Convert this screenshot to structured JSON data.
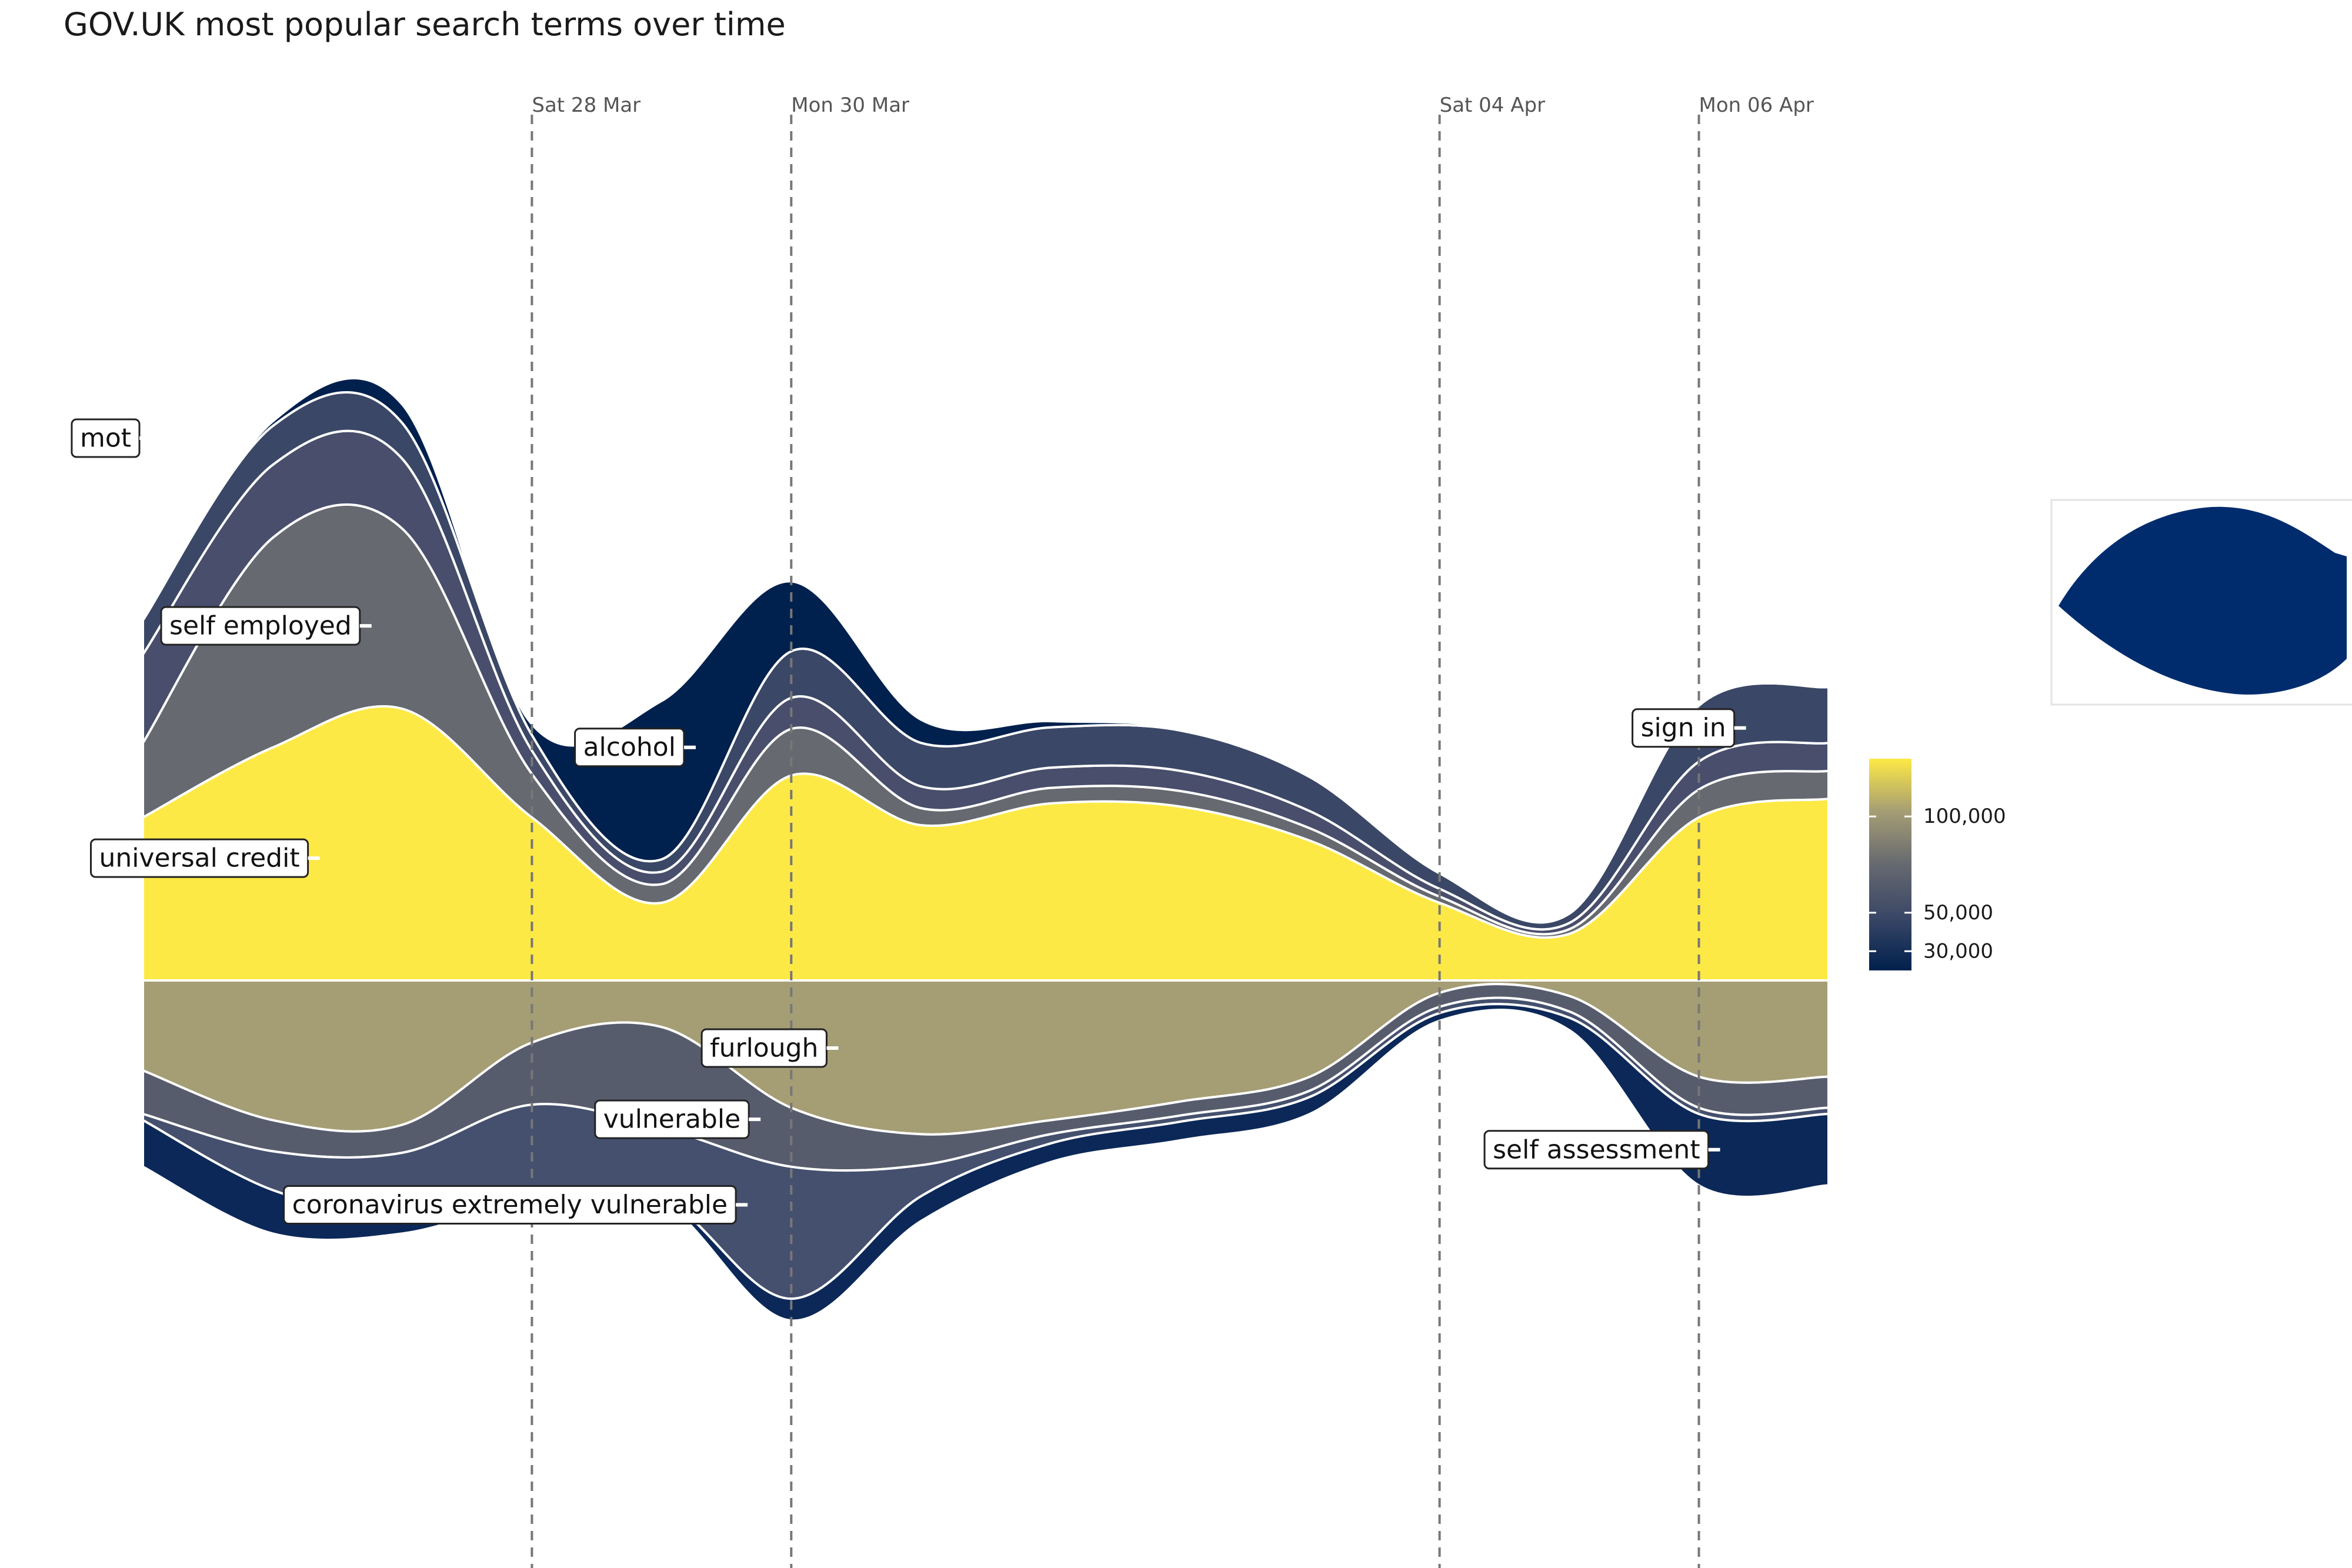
{
  "chart_data": {
    "type": "area",
    "subtype": "streamgraph",
    "title": "GOV.UK most popular search terms over time",
    "x": [
      "2020-03-25",
      "2020-03-26",
      "2020-03-27",
      "2020-03-28",
      "2020-03-29",
      "2020-03-30",
      "2020-03-31",
      "2020-04-01",
      "2020-04-02",
      "2020-04-03",
      "2020-04-04",
      "2020-04-05",
      "2020-04-06",
      "2020-04-07"
    ],
    "date_markers": [
      {
        "date": "2020-03-28",
        "label": "Sat 28 Mar"
      },
      {
        "date": "2020-03-30",
        "label": "Mon 30 Mar"
      },
      {
        "date": "2020-04-04",
        "label": "Sat 04 Apr"
      },
      {
        "date": "2020-04-06",
        "label": "Mon 06 Apr"
      }
    ],
    "upper_series": [
      {
        "name": "universal credit",
        "values": [
          105000,
          150000,
          175000,
          105000,
          50000,
          132000,
          100000,
          114000,
          112000,
          90000,
          50000,
          30000,
          105000,
          117000
        ],
        "color": "#FDE945"
      },
      {
        "name": "self employed",
        "values": [
          48000,
          135000,
          116000,
          28000,
          12000,
          30000,
          11000,
          10000,
          10000,
          8000,
          4000,
          3000,
          18000,
          18000
        ],
        "color": "#666970"
      },
      {
        "name": "mot",
        "values": [
          57000,
          47000,
          45000,
          15000,
          8000,
          20000,
          14000,
          13000,
          13000,
          11000,
          5000,
          4000,
          18000,
          18000
        ],
        "color": "#484E6B"
      },
      {
        "name": "sign in",
        "values": [
          22000,
          25000,
          23000,
          10000,
          8000,
          30000,
          28000,
          26000,
          26000,
          22000,
          10000,
          6000,
          36000,
          36000
        ],
        "color": "#3A4766"
      },
      {
        "name": "alcohol",
        "values": [
          0,
          3000,
          12000,
          7000,
          102000,
          45000,
          15000,
          4000,
          1000,
          0,
          0,
          0,
          0,
          0
        ],
        "color": "#00204D"
      }
    ],
    "lower_series": [
      {
        "name": "furlough",
        "values": [
          58000,
          90000,
          93000,
          40000,
          30000,
          82000,
          99000,
          90000,
          78000,
          62000,
          8000,
          10000,
          62000,
          62000
        ],
        "color": "#A59D74"
      },
      {
        "name": "vulnerable",
        "values": [
          28000,
          20000,
          18000,
          40000,
          65000,
          38000,
          20000,
          9000,
          9000,
          9000,
          9000,
          10000,
          20000,
          20000
        ],
        "color": "#575C6D"
      },
      {
        "name": "coronavirus extremely vulnerable",
        "values": [
          4000,
          25000,
          40000,
          60000,
          45000,
          85000,
          20000,
          6000,
          4000,
          4000,
          4000,
          4000,
          4000,
          4000
        ],
        "color": "#45506E"
      },
      {
        "name": "self assessment",
        "values": [
          30000,
          28000,
          12000,
          2000,
          3000,
          14000,
          16000,
          12000,
          12000,
          11000,
          5000,
          8000,
          46000,
          46000
        ],
        "color": "#0C2858"
      }
    ],
    "legend": {
      "type": "colorbar",
      "position": "right",
      "ticks": [
        {
          "value": 30000,
          "label": "30,000"
        },
        {
          "value": 50000,
          "label": "50,000"
        },
        {
          "value": 100000,
          "label": "100,000"
        }
      ],
      "colors": [
        "#00204D",
        "#3A4766",
        "#666970",
        "#A59D74",
        "#FDE945"
      ],
      "min": 20000,
      "max": 130000
    },
    "grid": false
  }
}
